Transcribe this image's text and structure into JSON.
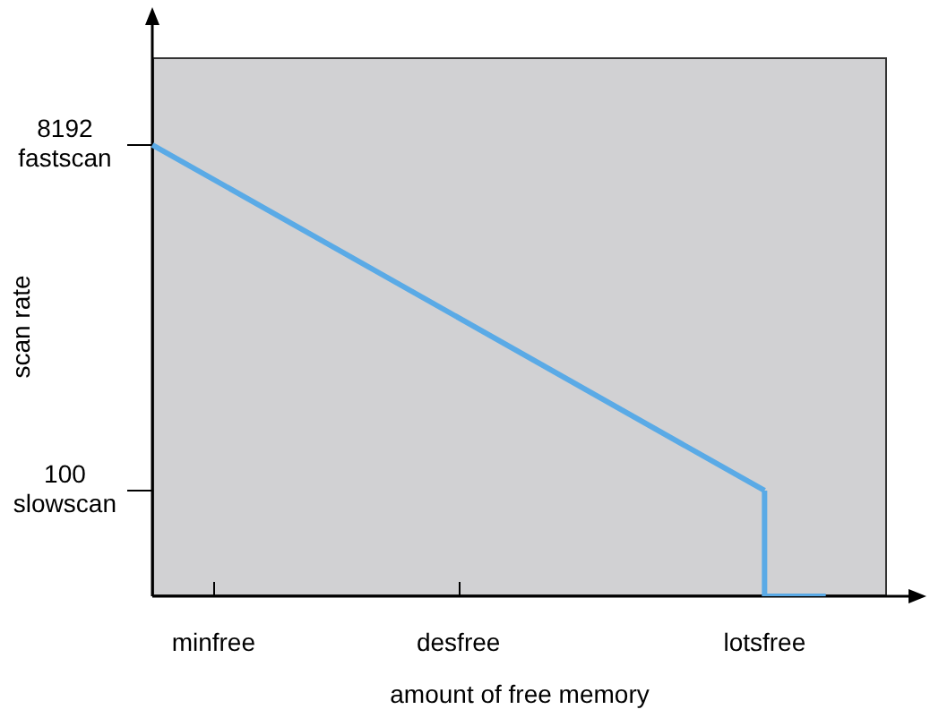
{
  "chart_data": {
    "type": "line",
    "xlabel": "amount of free memory",
    "ylabel": "scan rate",
    "categories": [
      null,
      "minfree",
      null,
      null,
      null,
      "desfree",
      null,
      null,
      null,
      null,
      "lotsfree",
      null,
      null
    ],
    "series": [
      {
        "type": "line",
        "color": "#5aaae6",
        "values": [
          8192,
          null,
          null,
          null,
          null,
          null,
          null,
          null,
          null,
          null,
          100,
          null,
          null
        ]
      },
      {
        "type": "step",
        "color": "#5aaae6",
        "values": [
          null,
          null,
          null,
          null,
          null,
          null,
          null,
          null,
          null,
          null,
          100,
          26,
          null
        ]
      }
    ],
    "line_style": "solid",
    "ylim": [
      26,
      25000
    ],
    "yticks": [
      {
        "value": 100,
        "label": "100\nslowscan"
      },
      {
        "value": 8192,
        "label": "8192\nfastscan"
      }
    ],
    "log": "y"
  }
}
